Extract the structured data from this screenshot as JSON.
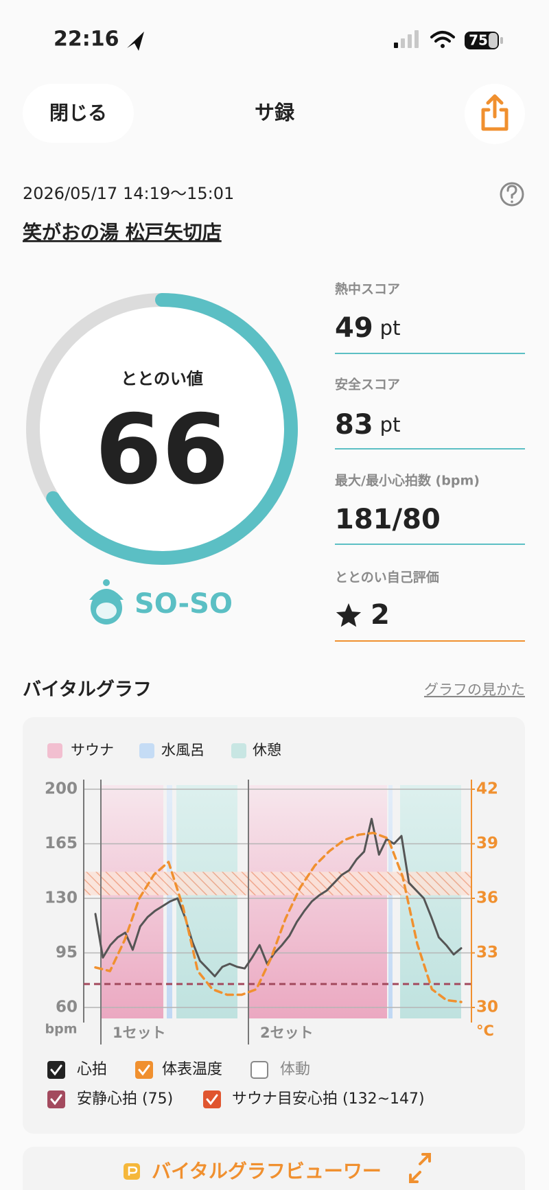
{
  "status_bar": {
    "time": "22:16",
    "battery": 75
  },
  "header": {
    "close": "閉じる",
    "title": "サ録"
  },
  "session": {
    "datetime": "2026/05/17 14:19～15:01",
    "place": "笑がおの湯 松戸矢切店"
  },
  "score": {
    "label": "ととのい値",
    "value": 66,
    "rating": "SO-SO"
  },
  "stats": [
    {
      "label": "熱中スコア",
      "value": 49,
      "unit": "pt"
    },
    {
      "label": "安全スコア",
      "value": 83,
      "unit": "pt"
    },
    {
      "label": "最大/最小心拍数 (bpm)",
      "value": "181/80"
    },
    {
      "label": "ととのい自己評価",
      "value": 2
    }
  ],
  "vital_graph": {
    "title": "バイタルグラフ",
    "help_link": "グラフの見かた",
    "phase_legend": [
      {
        "name": "サウナ",
        "color": "#f2bfd0"
      },
      {
        "name": "水風呂",
        "color": "#c5dcf5"
      },
      {
        "name": "休憩",
        "color": "#c8e6e3"
      }
    ],
    "chart": {
      "type": "line",
      "series": [
        {
          "name": "心拍",
          "color": "#555555",
          "line_style": "solid",
          "values": [
            120,
            92,
            100,
            105,
            108,
            97,
            112,
            118,
            122,
            125,
            128,
            130,
            118,
            102,
            90,
            85,
            80,
            86,
            88,
            86,
            85,
            92,
            100,
            88,
            95,
            100,
            106,
            115,
            122,
            128,
            132,
            135,
            140,
            145,
            148,
            155,
            160,
            181,
            158,
            168,
            165,
            170,
            140,
            135,
            130,
            118,
            105,
            100,
            94,
            98
          ]
        },
        {
          "name": "体表温度",
          "color": "#f0902f",
          "line_style": "dashed",
          "axis": "y2",
          "values": [
            32.2,
            32.0,
            33.7,
            36.0,
            37.3,
            38.0,
            35.5,
            32.0,
            31.0,
            30.7,
            30.7,
            31.0,
            32.7,
            34.9,
            36.6,
            37.8,
            38.6,
            39.2,
            39.5,
            39.6,
            39.3,
            37.2,
            33.5,
            31.0,
            30.4,
            30.3
          ]
        }
      ],
      "ylim": [
        60,
        200
      ],
      "yticks": [
        60,
        95,
        130,
        165,
        200
      ],
      "y2lim": [
        30,
        42
      ],
      "y2ticks": [
        30,
        33,
        36,
        39,
        42
      ],
      "y_unit": "bpm",
      "y2_unit": "°C",
      "set_labels": [
        "1セット",
        "2セット"
      ],
      "resting_hr": 75,
      "target_hr": [
        132,
        147
      ]
    },
    "toggles": [
      {
        "label": "心拍",
        "checked": true,
        "color": "#222222"
      },
      {
        "label": "体表温度",
        "checked": true,
        "color": "#f0902f"
      },
      {
        "label": "体動",
        "checked": false,
        "color": "#888888"
      },
      {
        "label": "安静心拍 (75)",
        "checked": true,
        "color": "#a34a5e"
      },
      {
        "label": "サウナ目安心拍 (132~147)",
        "checked": true,
        "color": "#e0552f"
      }
    ]
  },
  "viewer_button": "バイタルグラフビューワー"
}
